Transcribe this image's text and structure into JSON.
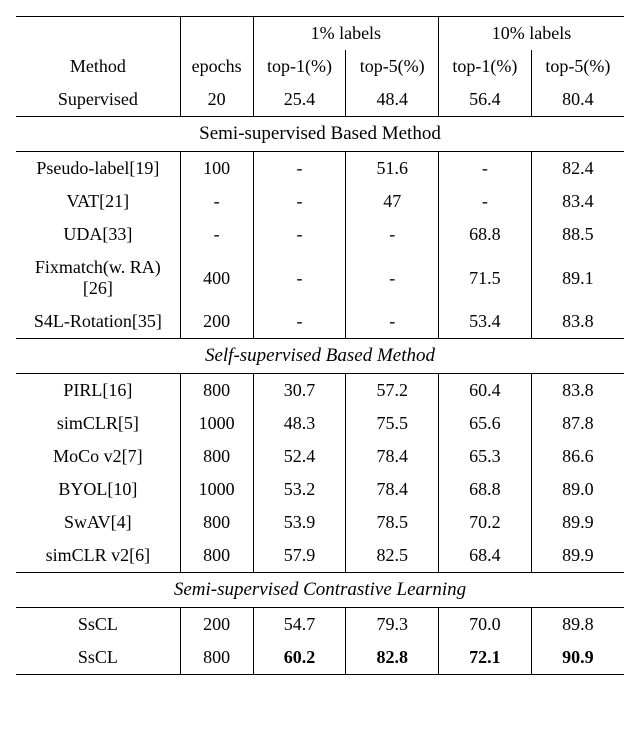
{
  "columns": {
    "method": "Method",
    "epochs": "epochs",
    "labels1": "1% labels",
    "labels10": "10% labels",
    "top1": "top-1(%)",
    "top5": "top-5(%)"
  },
  "supervised": {
    "name": "Supervised",
    "epochs": "20",
    "l1_top1": "25.4",
    "l1_top5": "48.4",
    "l10_top1": "56.4",
    "l10_top5": "80.4"
  },
  "sections": [
    {
      "title": "Semi-supervised Based Method",
      "italic": false,
      "rows": [
        {
          "name": "Pseudo-label[19]",
          "epochs": "100",
          "l1_top1": "-",
          "l1_top5": "51.6",
          "l10_top1": "-",
          "l10_top5": "82.4"
        },
        {
          "name": "VAT[21]",
          "epochs": "-",
          "l1_top1": "-",
          "l1_top5": "47",
          "l10_top1": "-",
          "l10_top5": "83.4"
        },
        {
          "name": "UDA[33]",
          "epochs": "-",
          "l1_top1": "-",
          "l1_top5": "-",
          "l10_top1": "68.8",
          "l10_top5": "88.5"
        },
        {
          "name": "Fixmatch(w. RA)[26]",
          "epochs": "400",
          "l1_top1": "-",
          "l1_top5": "-",
          "l10_top1": "71.5",
          "l10_top5": "89.1"
        },
        {
          "name": "S4L-Rotation[35]",
          "epochs": "200",
          "l1_top1": "-",
          "l1_top5": "-",
          "l10_top1": "53.4",
          "l10_top5": "83.8"
        }
      ]
    },
    {
      "title": "Self-supervised Based Method",
      "italic": true,
      "rows": [
        {
          "name": "PIRL[16]",
          "epochs": "800",
          "l1_top1": "30.7",
          "l1_top5": "57.2",
          "l10_top1": "60.4",
          "l10_top5": "83.8"
        },
        {
          "name": "simCLR[5]",
          "epochs": "1000",
          "l1_top1": "48.3",
          "l1_top5": "75.5",
          "l10_top1": "65.6",
          "l10_top5": "87.8"
        },
        {
          "name": "MoCo v2[7]",
          "epochs": "800",
          "l1_top1": "52.4",
          "l1_top5": "78.4",
          "l10_top1": "65.3",
          "l10_top5": "86.6"
        },
        {
          "name": "BYOL[10]",
          "epochs": "1000",
          "l1_top1": "53.2",
          "l1_top5": "78.4",
          "l10_top1": "68.8",
          "l10_top5": "89.0"
        },
        {
          "name": "SwAV[4]",
          "epochs": "800",
          "l1_top1": "53.9",
          "l1_top5": "78.5",
          "l10_top1": "70.2",
          "l10_top5": "89.9"
        },
        {
          "name": "simCLR v2[6]",
          "epochs": "800",
          "l1_top1": "57.9",
          "l1_top5": "82.5",
          "l10_top1": "68.4",
          "l10_top5": "89.9"
        }
      ]
    },
    {
      "title": "Semi-supervised Contrastive Learning",
      "italic": true,
      "rows": [
        {
          "name": "SsCL",
          "epochs": "200",
          "l1_top1": "54.7",
          "l1_top5": "79.3",
          "l10_top1": "70.0",
          "l10_top5": "89.8"
        },
        {
          "name": "SsCL",
          "epochs": "800",
          "l1_top1": "60.2",
          "l1_top5": "82.8",
          "l10_top1": "72.1",
          "l10_top5": "90.9",
          "bold": true
        }
      ]
    }
  ],
  "col_widths": [
    "27%",
    "12%",
    "15.25%",
    "15.25%",
    "15.25%",
    "15.25%"
  ]
}
